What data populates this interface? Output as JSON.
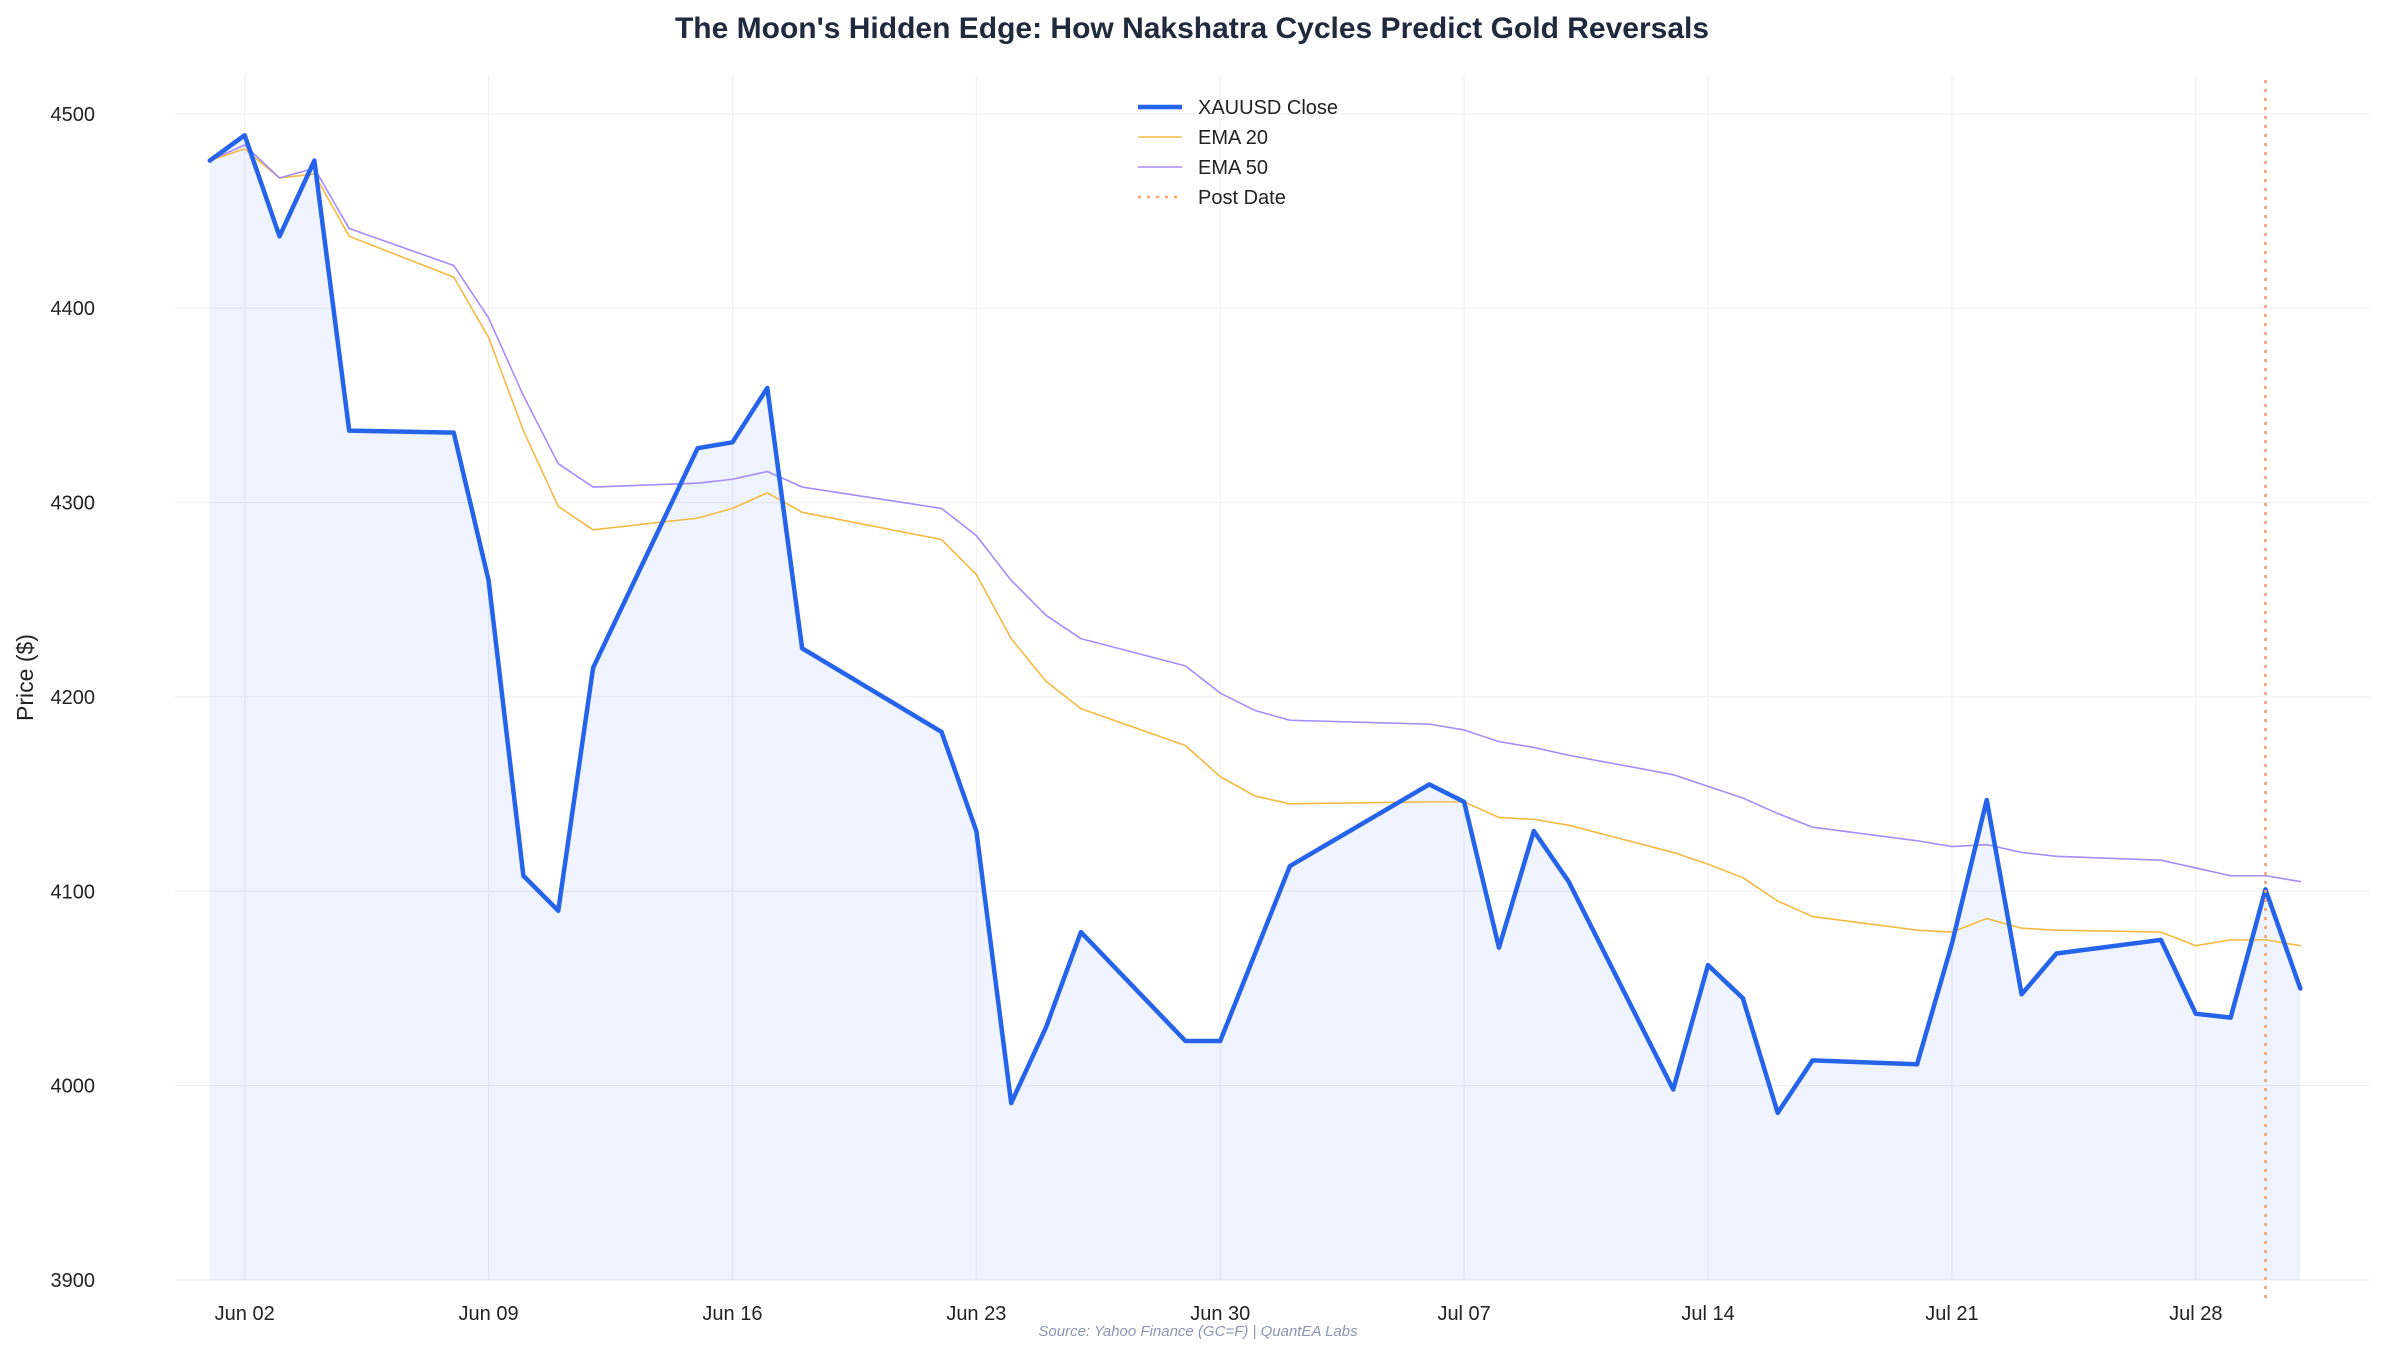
{
  "chart_data": {
    "type": "line",
    "title": "The Moon's Hidden Edge: How Nakshatra Cycles Predict Gold Reversals",
    "ylabel": "Price ($)",
    "xlabel": "",
    "ylim": [
      3900,
      4520
    ],
    "yticks": [
      3900,
      4000,
      4100,
      4200,
      4300,
      4400,
      4500
    ],
    "x_ticks": [
      {
        "label": "Jun 02",
        "date": "2025-06-02"
      },
      {
        "label": "Jun 09",
        "date": "2025-06-09"
      },
      {
        "label": "Jun 16",
        "date": "2025-06-16"
      },
      {
        "label": "Jun 23",
        "date": "2025-06-23"
      },
      {
        "label": "Jun 30",
        "date": "2025-06-30"
      },
      {
        "label": "Jul 07",
        "date": "2025-07-07"
      },
      {
        "label": "Jul 14",
        "date": "2025-07-14"
      },
      {
        "label": "Jul 21",
        "date": "2025-07-21"
      },
      {
        "label": "Jul 28",
        "date": "2025-07-28"
      }
    ],
    "x_range": [
      "2025-05-31",
      "2025-08-02"
    ],
    "grid": true,
    "legend_position": "top-center",
    "x": [
      "2025-06-01",
      "2025-06-02",
      "2025-06-03",
      "2025-06-04",
      "2025-06-05",
      "2025-06-08",
      "2025-06-09",
      "2025-06-10",
      "2025-06-11",
      "2025-06-12",
      "2025-06-15",
      "2025-06-16",
      "2025-06-17",
      "2025-06-18",
      "2025-06-22",
      "2025-06-23",
      "2025-06-24",
      "2025-06-25",
      "2025-06-26",
      "2025-06-29",
      "2025-06-30",
      "2025-07-01",
      "2025-07-02",
      "2025-07-06",
      "2025-07-07",
      "2025-07-08",
      "2025-07-09",
      "2025-07-10",
      "2025-07-13",
      "2025-07-14",
      "2025-07-15",
      "2025-07-16",
      "2025-07-17",
      "2025-07-20",
      "2025-07-21",
      "2025-07-22",
      "2025-07-23",
      "2025-07-24",
      "2025-07-27",
      "2025-07-28",
      "2025-07-29",
      "2025-07-30",
      "2025-07-31"
    ],
    "series": [
      {
        "name": "XAUUSD Close",
        "color": "#2563eb",
        "values": [
          4476,
          4489,
          4437,
          4476,
          4337,
          4336,
          4260,
          4108,
          4090,
          4215,
          4328,
          4331,
          4359,
          4225,
          4182,
          4131,
          3991,
          4030,
          4079,
          4023,
          4023,
          4068,
          4113,
          4155,
          4146,
          4071,
          4131,
          4105,
          3998,
          4062,
          4045,
          3986,
          4013,
          4011,
          4073,
          4147,
          4047,
          4068,
          4075,
          4037,
          4035,
          4101,
          4050
        ]
      },
      {
        "name": "EMA 20",
        "color": "#f4b942",
        "values": [
          4476,
          4482,
          4467,
          4469,
          4437,
          4416,
          4385,
          4337,
          4298,
          4286,
          4292,
          4297,
          4305,
          4295,
          4281,
          4263,
          4230,
          4208,
          4194,
          4175,
          4159,
          4149,
          4145,
          4146,
          4146,
          4138,
          4137,
          4134,
          4120,
          4114,
          4107,
          4095,
          4087,
          4080,
          4079,
          4086,
          4081,
          4080,
          4079,
          4072,
          4075,
          4075,
          4072
        ]
      },
      {
        "name": "EMA 50",
        "color": "#a78bfa",
        "values": [
          4476,
          4484,
          4467,
          4472,
          4441,
          4422,
          4395,
          4355,
          4320,
          4308,
          4310,
          4312,
          4316,
          4308,
          4297,
          4283,
          4260,
          4242,
          4230,
          4216,
          4202,
          4193,
          4188,
          4186,
          4183,
          4177,
          4174,
          4170,
          4160,
          4154,
          4148,
          4140,
          4133,
          4126,
          4123,
          4124,
          4120,
          4118,
          4116,
          4112,
          4108,
          4108,
          4105
        ]
      }
    ],
    "post_date": {
      "name": "Post Date",
      "date": "2025-07-30",
      "color": "#f59e66"
    },
    "source": "Source: Yahoo Finance (GC=F) | QuantEA Labs"
  }
}
